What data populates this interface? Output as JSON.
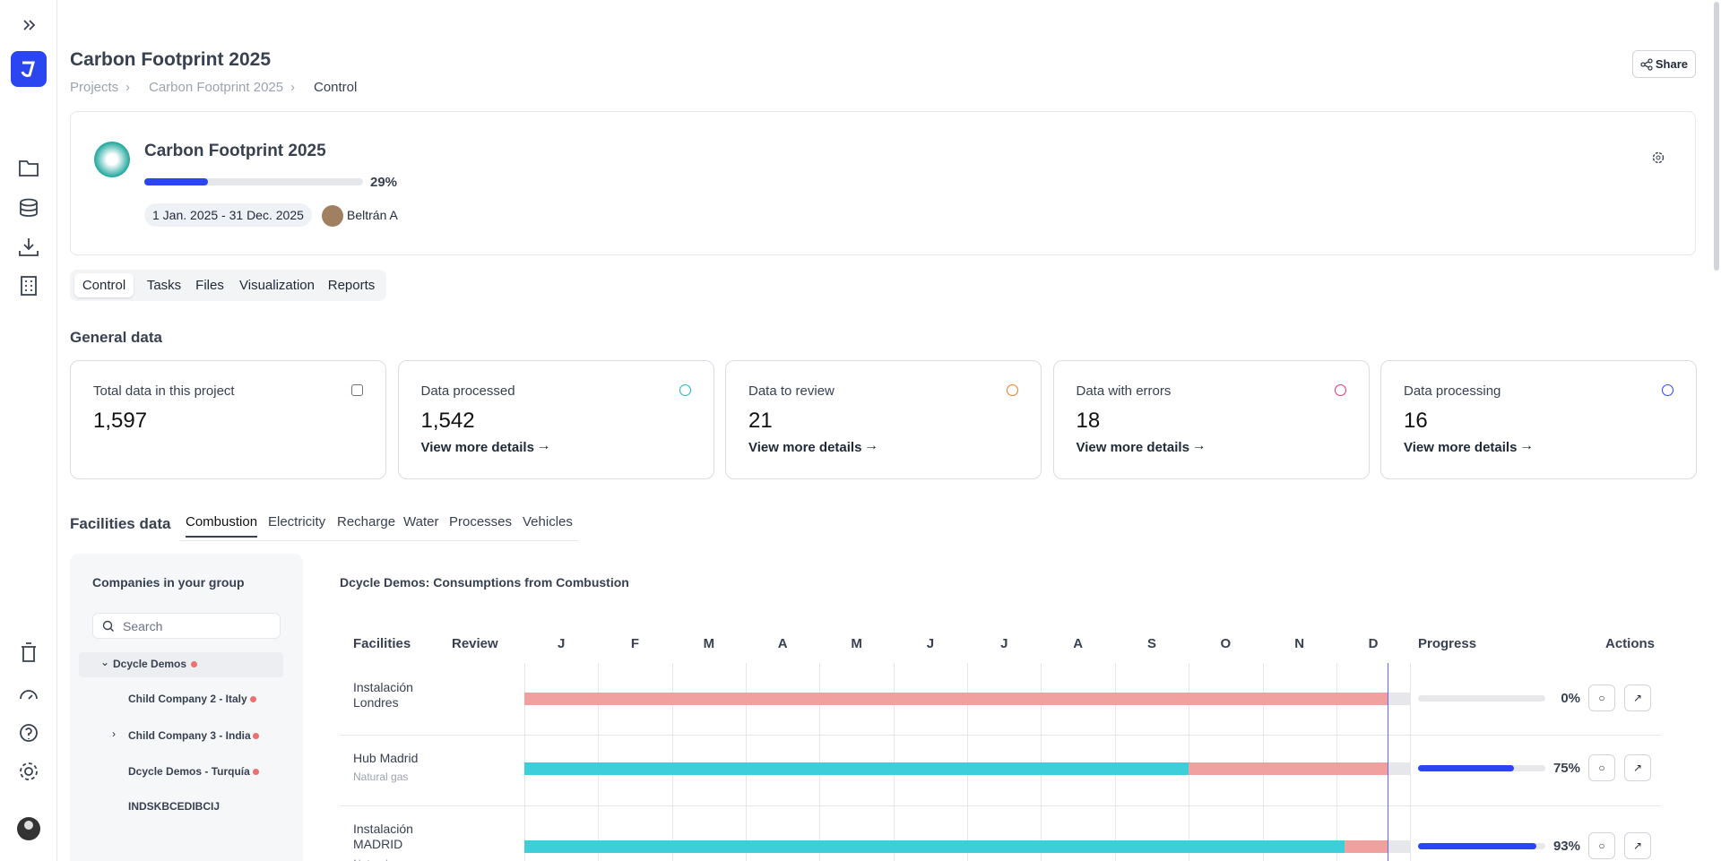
{
  "header": {
    "title": "Carbon Footprint 2025",
    "share": "Share",
    "breadcrumb": [
      "Projects",
      "Carbon Footprint 2025",
      "Control"
    ]
  },
  "project": {
    "title": "Carbon Footprint 2025",
    "progress": {
      "value": 29,
      "label": "29%"
    },
    "dates": "1 Jan. 2025 - 31 Dec. 2025",
    "owner": "Beltrán A"
  },
  "tabs": [
    "Control",
    "Tasks",
    "Files",
    "Visualization",
    "Reports"
  ],
  "general": {
    "title": "General data",
    "cards": [
      {
        "label": "Total data in this project",
        "value": "1,597"
      },
      {
        "label": "Data processed",
        "value": "1,542",
        "link": "View more details"
      },
      {
        "label": "Data to review",
        "value": "21",
        "link": "View more details"
      },
      {
        "label": "Data with errors",
        "value": "18",
        "link": "View more details"
      },
      {
        "label": "Data processing",
        "value": "16",
        "link": "View more details"
      }
    ]
  },
  "facilities": {
    "title": "Facilities data",
    "tabs": [
      "Combustion",
      "Electricity",
      "Recharge",
      "Water",
      "Processes",
      "Vehicles"
    ],
    "panel": {
      "title": "Companies in your group",
      "search": "Search",
      "companies": [
        "Dcycle Demos",
        "Child Company 2 - Italy",
        "Child Company 3 - India",
        "Dcycle Demos - Turquía",
        "INDSKBCEDIBCIJ"
      ]
    },
    "table": {
      "title": "Dcycle Demos: Consumptions from Combustion",
      "columns": [
        "Facilities",
        "Review",
        "Progress",
        "Actions"
      ],
      "months": [
        "J",
        "F",
        "M",
        "A",
        "M",
        "J",
        "J",
        "A",
        "S",
        "O",
        "N",
        "D"
      ],
      "rows": [
        {
          "name": "Instalación Londres",
          "progress": {
            "value": 0,
            "label": "0%"
          }
        },
        {
          "name": "Hub Madrid",
          "sub": "Natural gas",
          "progress": {
            "value": 75,
            "label": "75%"
          }
        },
        {
          "name": "Instalación MADRID",
          "sub": "Natural gas",
          "progress": {
            "value": 93,
            "label": "93%"
          }
        }
      ]
    }
  }
}
